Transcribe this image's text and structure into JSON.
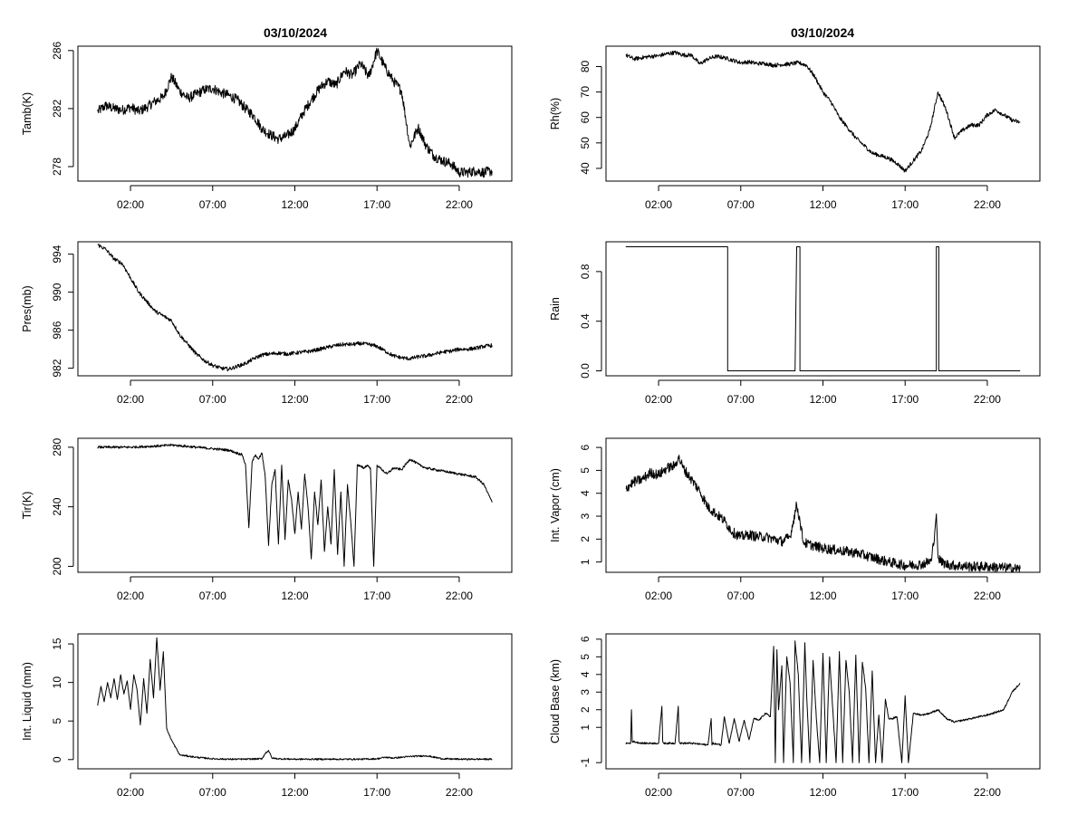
{
  "titles": [
    "03/10/2024",
    "03/10/2024"
  ],
  "colors": {
    "line": "#000000",
    "frame": "#000000",
    "background": "#ffffff"
  },
  "chart_data": [
    {
      "type": "line",
      "title": "03/10/2024",
      "ylabel": "Tamb(K)",
      "xticks": [
        "02:00",
        "07:00",
        "12:00",
        "17:00",
        "22:00"
      ],
      "xlim": [
        -1.2,
        25.2
      ],
      "yticks": [
        "278",
        "282",
        "286"
      ],
      "ytick_values": [
        278,
        282,
        286
      ],
      "ylim": [
        277,
        286.3
      ],
      "series": [
        {
          "x": [
            0,
            0.5,
            1,
            1.5,
            2,
            2.5,
            3,
            3.5,
            4,
            4.5,
            5,
            5.5,
            6,
            6.5,
            7,
            7.5,
            8,
            8.5,
            9,
            9.5,
            10,
            10.5,
            11,
            11.5,
            12,
            12.5,
            13,
            13.5,
            14,
            14.5,
            15,
            15.5,
            16,
            16.5,
            17,
            17.5,
            18,
            18.5,
            19,
            19.5,
            20,
            20.5,
            21,
            21.5,
            22,
            22.5,
            23,
            23.5,
            24
          ],
          "y": [
            281.8,
            282.2,
            282,
            281.9,
            282.1,
            281.8,
            282.1,
            282.5,
            282.8,
            284.2,
            283.2,
            282.7,
            283,
            283.3,
            283.4,
            283.1,
            282.9,
            282.6,
            282,
            281.5,
            280.6,
            280.2,
            279.9,
            280.1,
            280.6,
            281.7,
            282.6,
            283.4,
            283.9,
            283.6,
            284.6,
            284.3,
            285.1,
            284.2,
            286,
            284.8,
            283.9,
            283.2,
            279.4,
            280.7,
            279.4,
            278.7,
            278.4,
            278.2,
            277.6,
            277.6,
            277.7,
            277.6,
            277.7
          ],
          "noise": 0.35
        }
      ]
    },
    {
      "type": "line",
      "title": "03/10/2024",
      "ylabel": "Rh(%)",
      "xticks": [
        "02:00",
        "07:00",
        "12:00",
        "17:00",
        "22:00"
      ],
      "xlim": [
        -1.2,
        25.2
      ],
      "yticks": [
        "40",
        "50",
        "60",
        "70",
        "80"
      ],
      "ytick_values": [
        40,
        50,
        60,
        70,
        80
      ],
      "ylim": [
        35,
        88
      ],
      "series": [
        {
          "x": [
            0,
            0.5,
            1,
            1.5,
            2,
            2.5,
            3,
            3.5,
            4,
            4.5,
            5,
            5.5,
            6,
            6.5,
            7,
            7.5,
            8,
            8.5,
            9,
            9.5,
            10,
            10.5,
            11,
            11.5,
            12,
            12.5,
            13,
            13.5,
            14,
            14.5,
            15,
            15.5,
            16,
            16.5,
            17,
            17.5,
            18,
            18.5,
            19,
            19.5,
            20,
            20.5,
            21,
            21.5,
            22,
            22.5,
            23,
            23.5,
            24
          ],
          "y": [
            84.5,
            83,
            83.5,
            84,
            84.2,
            85,
            85.5,
            84.5,
            84.5,
            81,
            83,
            84,
            83.5,
            82.5,
            81.5,
            81.8,
            81.2,
            81.2,
            80.5,
            80.8,
            81,
            81.5,
            80.5,
            76,
            70,
            66,
            60,
            56,
            52,
            49,
            46,
            45,
            44,
            42,
            39,
            43,
            47,
            55,
            70,
            63,
            52,
            55,
            57,
            57,
            61,
            63,
            61,
            59,
            58
          ],
          "noise": 0.8
        }
      ]
    },
    {
      "type": "line",
      "title": "",
      "ylabel": "Pres(mb)",
      "xticks": [
        "02:00",
        "07:00",
        "12:00",
        "17:00",
        "22:00"
      ],
      "xlim": [
        -1.2,
        25.2
      ],
      "yticks": [
        "982",
        "986",
        "990",
        "994"
      ],
      "ytick_values": [
        982,
        986,
        990,
        994
      ],
      "ylim": [
        981.2,
        995.3
      ],
      "series": [
        {
          "x": [
            0,
            0.5,
            1,
            1.5,
            2,
            2.5,
            3,
            3.5,
            4,
            4.5,
            5,
            5.5,
            6,
            6.5,
            7,
            7.5,
            8,
            8.5,
            9,
            9.5,
            10,
            10.5,
            11,
            11.5,
            12,
            12.5,
            13,
            13.5,
            14,
            14.5,
            15,
            15.5,
            16,
            16.5,
            17,
            17.5,
            18,
            18.5,
            19,
            19.5,
            20,
            20.5,
            21,
            21.5,
            22,
            22.5,
            23,
            23.5,
            24
          ],
          "y": [
            995,
            994.5,
            993.5,
            993,
            991.5,
            990,
            989,
            988,
            987.5,
            987,
            985.5,
            984.5,
            983.5,
            982.8,
            982.3,
            982,
            981.9,
            982.2,
            982.5,
            983,
            983.4,
            983.5,
            983.6,
            983.5,
            983.6,
            983.7,
            983.8,
            984,
            984.2,
            984.4,
            984.5,
            984.5,
            984.6,
            984.5,
            984.3,
            983.8,
            983.3,
            983.1,
            983,
            983.2,
            983.3,
            983.5,
            983.7,
            983.8,
            984,
            984,
            984.1,
            984.3,
            984.4
          ],
          "noise": 0.2
        }
      ]
    },
    {
      "type": "line",
      "title": "",
      "ylabel": "Rain",
      "xticks": [
        "02:00",
        "07:00",
        "12:00",
        "17:00",
        "22:00"
      ],
      "xlim": [
        -1.2,
        25.2
      ],
      "yticks": [
        "0.0",
        "0.4",
        "0.8"
      ],
      "ytick_values": [
        0,
        0.4,
        0.8
      ],
      "ylim": [
        -0.04,
        1.04
      ],
      "series": [
        {
          "x": [
            0,
            6.2,
            6.2,
            10.3,
            10.4,
            10.6,
            10.6,
            18.9,
            18.9,
            19.05,
            19.05,
            24
          ],
          "y": [
            1,
            1,
            0,
            0,
            1,
            1,
            0,
            0,
            1,
            1,
            0,
            0
          ],
          "noise": 0
        }
      ]
    },
    {
      "type": "line",
      "title": "",
      "ylabel": "Tir(K)",
      "xticks": [
        "02:00",
        "07:00",
        "12:00",
        "17:00",
        "22:00"
      ],
      "xlim": [
        -1.2,
        25.2
      ],
      "yticks": [
        "200",
        "240",
        "280"
      ],
      "ytick_values": [
        200,
        240,
        280
      ],
      "ylim": [
        196,
        286
      ],
      "series": [
        {
          "x": [
            0,
            1,
            2,
            3,
            4,
            4.5,
            5,
            6,
            7,
            8,
            8.5,
            8.8,
            9,
            9.2,
            9.4,
            9.6,
            9.8,
            10,
            10.2,
            10.4,
            10.6,
            10.8,
            11,
            11.2,
            11.4,
            11.6,
            11.8,
            12,
            12.2,
            12.4,
            12.6,
            12.8,
            13,
            13.2,
            13.4,
            13.6,
            13.8,
            14,
            14.2,
            14.4,
            14.6,
            14.8,
            15,
            15.2,
            15.4,
            15.6,
            15.8,
            16,
            16.2,
            16.4,
            16.6,
            16.8,
            17,
            17.2,
            17.4,
            17.6,
            18,
            18.5,
            19,
            19.3,
            19.6,
            20,
            21,
            22,
            23,
            23.5,
            24
          ],
          "y": [
            280,
            280,
            280,
            280.5,
            281,
            281.5,
            281,
            280,
            279,
            278,
            276,
            275,
            268,
            226,
            270,
            275,
            272,
            276,
            260,
            214,
            255,
            265,
            215,
            268,
            218,
            258,
            245,
            222,
            250,
            225,
            262,
            240,
            205,
            250,
            228,
            258,
            210,
            240,
            215,
            265,
            208,
            250,
            200,
            255,
            230,
            200,
            268,
            267,
            266,
            268,
            266,
            200,
            268,
            266,
            264,
            262,
            266,
            265,
            272,
            270,
            268,
            266,
            264,
            262,
            260,
            255,
            243
          ],
          "noise": 0.8
        }
      ]
    },
    {
      "type": "line",
      "title": "",
      "ylabel": "Int. Vapor (cm)",
      "xticks": [
        "02:00",
        "07:00",
        "12:00",
        "17:00",
        "22:00"
      ],
      "xlim": [
        -1.2,
        25.2
      ],
      "yticks": [
        "1",
        "2",
        "3",
        "4",
        "5",
        "6"
      ],
      "ytick_values": [
        1,
        2,
        3,
        4,
        5,
        6
      ],
      "ylim": [
        0.55,
        6.4
      ],
      "series": [
        {
          "x": [
            0,
            0.5,
            1,
            1.5,
            2,
            2.5,
            3,
            3.2,
            3.5,
            4,
            4.5,
            5,
            5.5,
            6,
            6.5,
            7,
            7.5,
            8,
            8.5,
            9,
            9.5,
            10,
            10.2,
            10.4,
            10.6,
            10.8,
            11,
            11.5,
            12,
            13,
            14,
            15,
            16,
            17,
            18,
            18.6,
            18.8,
            18.9,
            19,
            19.2,
            19.5,
            20,
            21,
            22,
            23,
            24
          ],
          "y": [
            4.2,
            4.5,
            4.6,
            4.9,
            4.8,
            5.1,
            5.2,
            5.6,
            5.1,
            4.6,
            4.1,
            3.4,
            3.1,
            2.8,
            2.3,
            2.1,
            2.2,
            2.1,
            2.1,
            2,
            1.9,
            2.1,
            2.8,
            3.5,
            2.8,
            1.9,
            1.8,
            1.7,
            1.6,
            1.5,
            1.4,
            1.2,
            1,
            0.85,
            0.9,
            1.05,
            2.3,
            3.1,
            1.2,
            1,
            0.9,
            0.85,
            0.8,
            0.8,
            0.75,
            0.7
          ],
          "noise": 0.22
        }
      ]
    },
    {
      "type": "line",
      "title": "",
      "ylabel": "Int. Liquid (mm)",
      "xticks": [
        "02:00",
        "07:00",
        "12:00",
        "17:00",
        "22:00"
      ],
      "xlim": [
        -1.2,
        25.2
      ],
      "yticks": [
        "0",
        "5",
        "10",
        "15"
      ],
      "ytick_values": [
        0,
        5,
        10,
        15
      ],
      "ylim": [
        -1.2,
        16.3
      ],
      "series": [
        {
          "x": [
            0,
            0.2,
            0.4,
            0.6,
            0.8,
            1,
            1.2,
            1.4,
            1.6,
            1.8,
            2,
            2.2,
            2.4,
            2.6,
            2.8,
            3,
            3.2,
            3.4,
            3.6,
            3.8,
            4,
            4.2,
            4.5,
            5,
            6,
            7,
            8,
            9,
            10,
            10.2,
            10.4,
            10.6,
            11,
            12,
            14,
            16,
            17,
            17.5,
            18,
            19,
            20,
            21,
            22,
            24
          ],
          "y": [
            7,
            9.5,
            7.5,
            10,
            8,
            10.5,
            7.8,
            11,
            8.5,
            10.2,
            6.5,
            11,
            9,
            4.5,
            10.5,
            6,
            13,
            8,
            15.8,
            9,
            14,
            4,
            2.5,
            0.6,
            0.3,
            0.1,
            0.05,
            0.05,
            0.1,
            0.8,
            1.2,
            0.2,
            0.1,
            0.05,
            0.05,
            0.05,
            0.1,
            0.3,
            0.2,
            0.4,
            0.5,
            0.1,
            0.05,
            0.05
          ],
          "noise": 0.1
        }
      ]
    },
    {
      "type": "line",
      "title": "",
      "ylabel": "Cloud Base (km)",
      "xticks": [
        "02:00",
        "07:00",
        "12:00",
        "17:00",
        "22:00"
      ],
      "xlim": [
        -1.2,
        25.2
      ],
      "yticks": [
        "-1",
        "1",
        "2",
        "3",
        "4",
        "5",
        "6"
      ],
      "ytick_values": [
        -1,
        1,
        2,
        3,
        4,
        5,
        6
      ],
      "ylim": [
        -1.35,
        6.3
      ],
      "series": [
        {
          "x": [
            0,
            0.3,
            0.35,
            0.4,
            1,
            2,
            2.2,
            2.25,
            2.3,
            3,
            3.2,
            3.25,
            3.3,
            4,
            5,
            5.2,
            5.25,
            5.3,
            5.8,
            6,
            6.3,
            6.6,
            6.9,
            7.2,
            7.5,
            7.8,
            8.1,
            8.5,
            8.8,
            9,
            9.1,
            9.2,
            9.3,
            9.5,
            9.6,
            9.8,
            10,
            10.2,
            10.3,
            10.5,
            10.7,
            10.9,
            11,
            11.2,
            11.4,
            11.6,
            11.8,
            12,
            12.2,
            12.4,
            12.6,
            12.8,
            13,
            13.2,
            13.4,
            13.6,
            13.8,
            14,
            14.2,
            14.4,
            14.6,
            14.8,
            15,
            15.2,
            15.4,
            15.6,
            15.8,
            16,
            16.2,
            16.5,
            16.8,
            17,
            17.2,
            17.5,
            18,
            18.5,
            19,
            19.5,
            20,
            21,
            22,
            23,
            23.5,
            24
          ],
          "y": [
            0.1,
            0.1,
            2,
            0.2,
            0.1,
            0.1,
            2.2,
            0.2,
            0.1,
            0.1,
            2.2,
            0.2,
            0.1,
            0.1,
            0,
            1.5,
            0,
            0.1,
            0,
            1.6,
            0.1,
            1.5,
            0.2,
            1.4,
            0.3,
            1.5,
            1.4,
            1.8,
            1.6,
            5.6,
            -1,
            5.4,
            2,
            4.5,
            -1,
            5,
            3.5,
            -1,
            5.9,
            4,
            -1,
            5.8,
            3,
            -1,
            4.8,
            1.5,
            -1,
            5.2,
            -1,
            5,
            2,
            -1,
            5.3,
            -1,
            4.8,
            3,
            -1,
            5.1,
            -1,
            4.7,
            3.2,
            -1,
            4.2,
            -1,
            1.7,
            -1,
            2.6,
            1.5,
            1.5,
            1.6,
            -1,
            2.8,
            -1,
            1.8,
            1.7,
            1.8,
            2,
            1.5,
            1.3,
            1.5,
            1.7,
            2,
            3,
            3.5
          ],
          "noise": 0.05
        }
      ]
    }
  ]
}
